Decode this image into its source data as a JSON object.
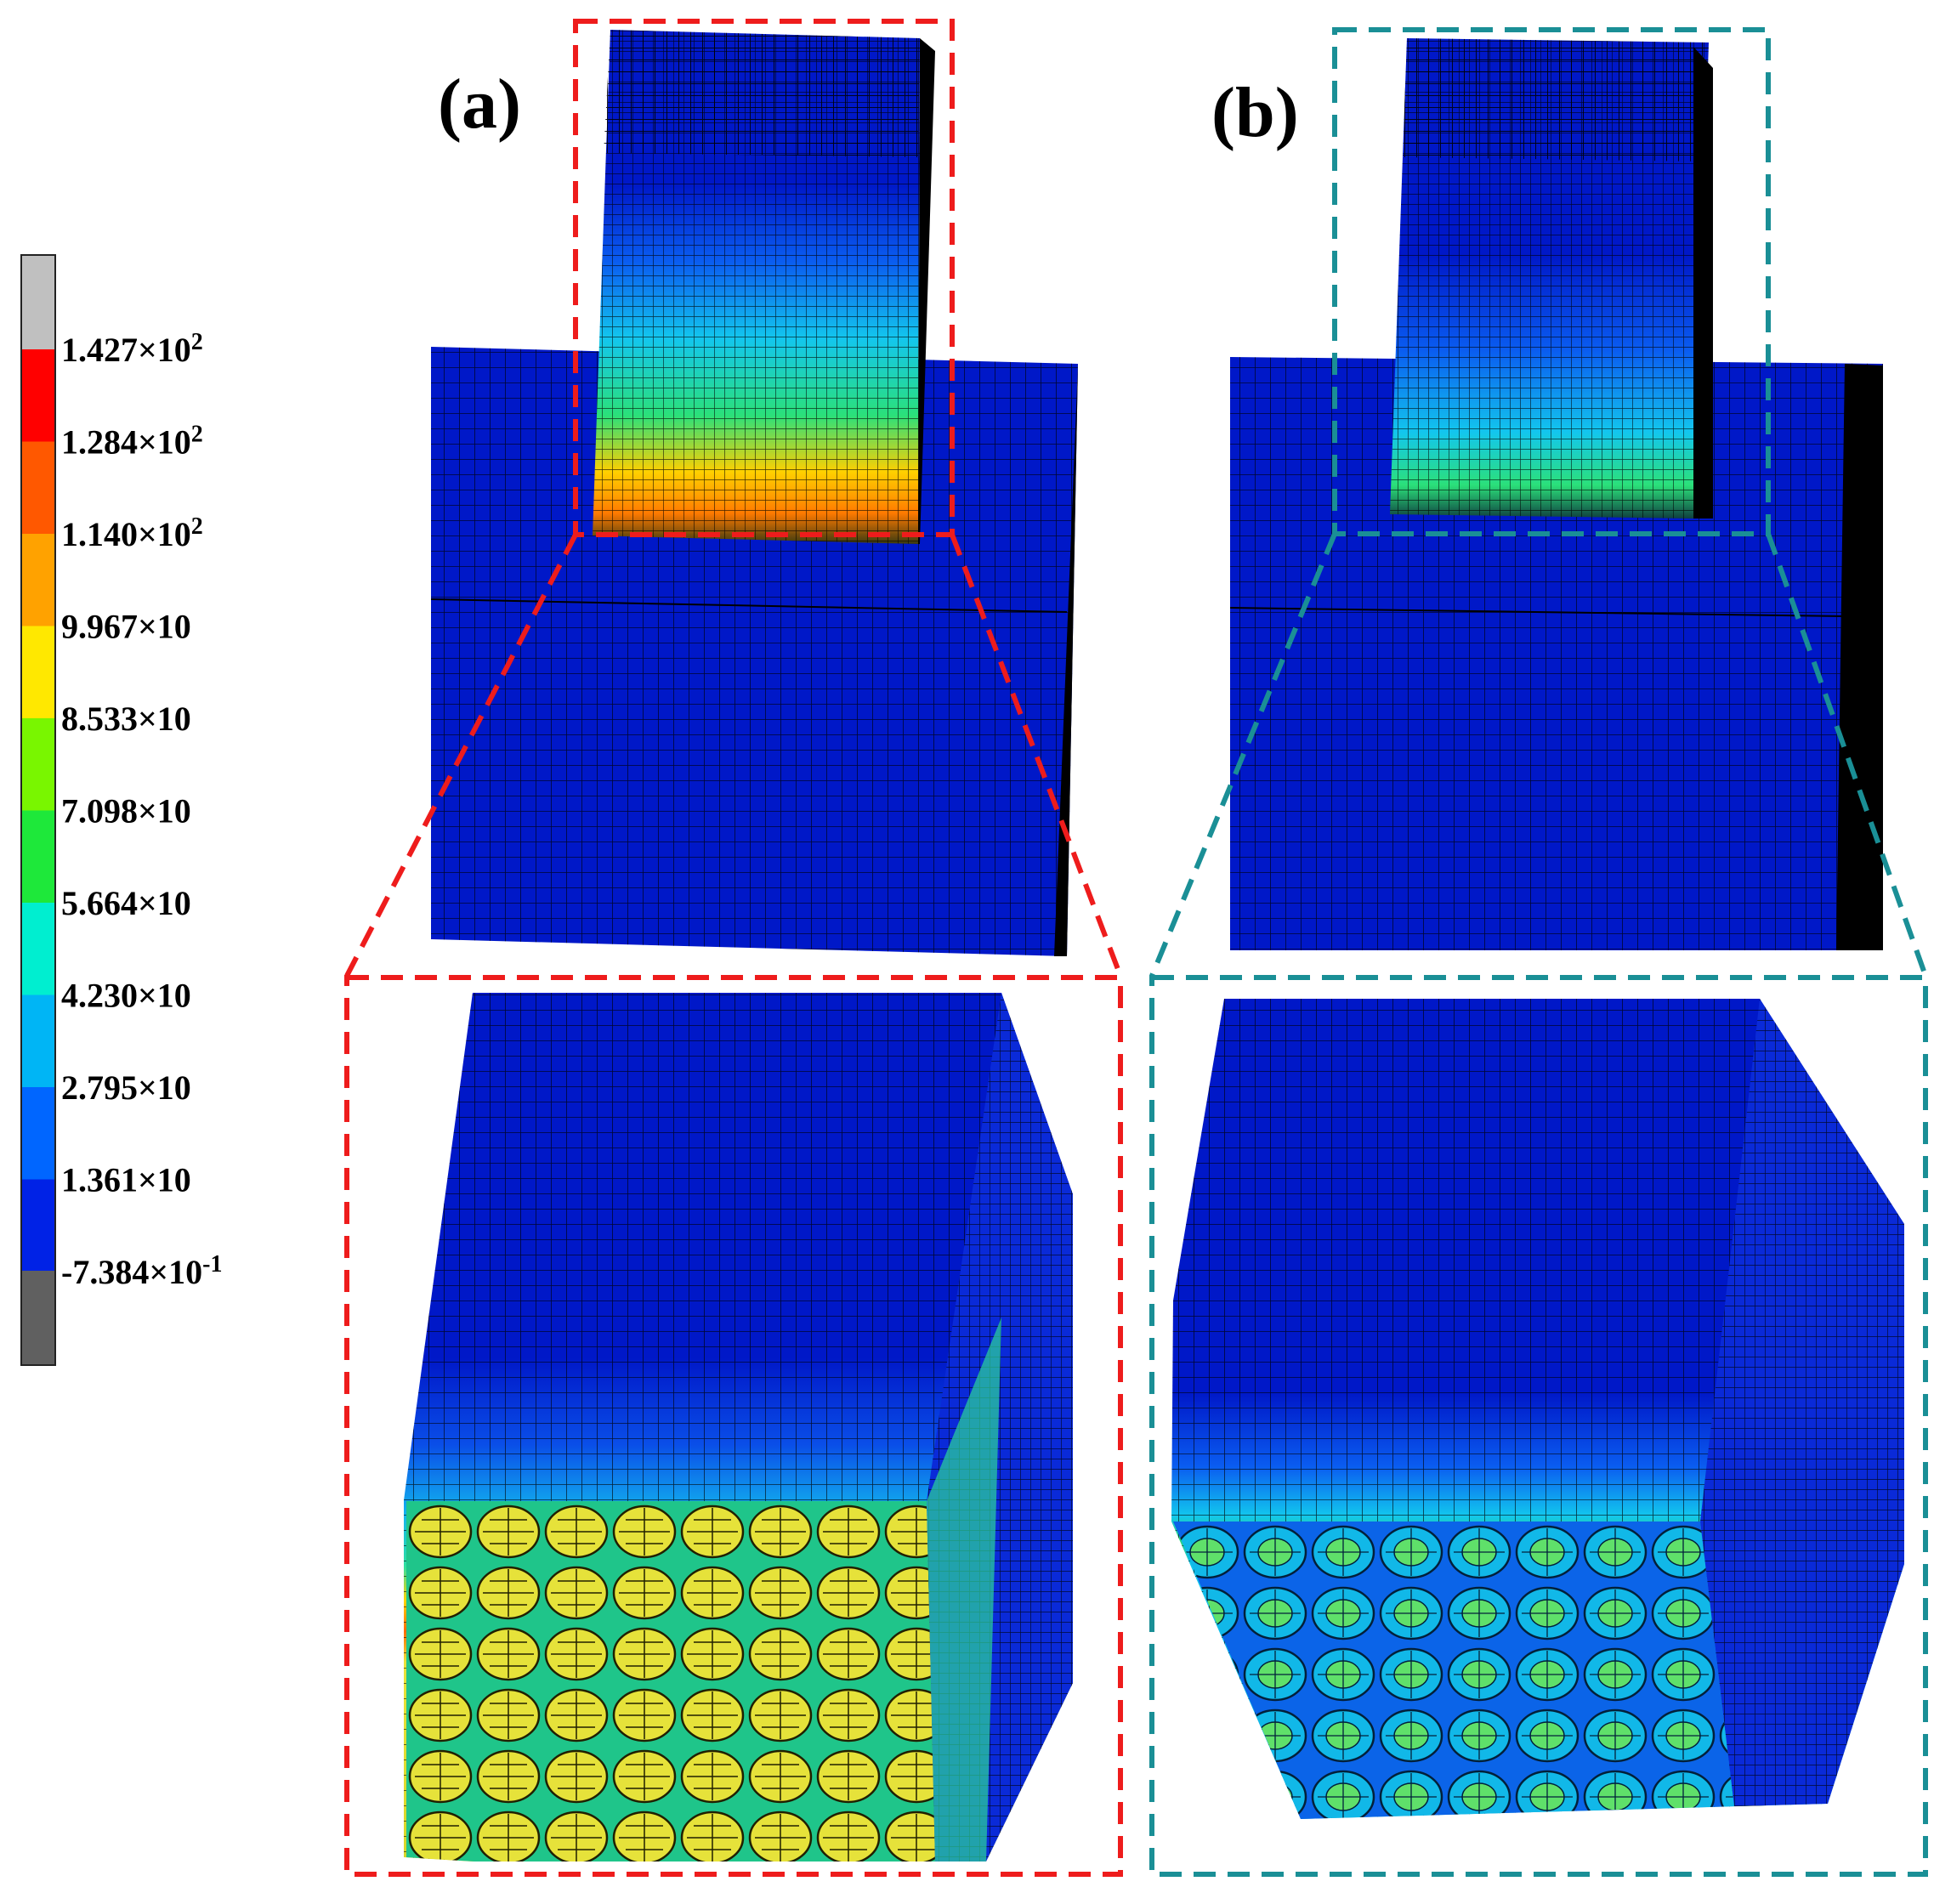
{
  "panels": [
    {
      "id": "a",
      "label": "(a)",
      "frame_color": "#ee1c1c"
    },
    {
      "id": "b",
      "label": "(b)",
      "frame_color": "#1a8f96"
    }
  ],
  "legend": {
    "above_max_color": "#c0c0c0",
    "below_min_color": "#606060",
    "bands": [
      {
        "color": "#ff0000",
        "label_base": "1.427×10",
        "label_exp": "2"
      },
      {
        "color": "#ff5800",
        "label_base": "1.284×10",
        "label_exp": "2"
      },
      {
        "color": "#ffa200",
        "label_base": "1.140×10",
        "label_exp": "2"
      },
      {
        "color": "#ffe800",
        "label_base": "9.967×10",
        "label_exp": ""
      },
      {
        "color": "#79f600",
        "label_base": "8.533×10",
        "label_exp": ""
      },
      {
        "color": "#1ee83a",
        "label_base": "7.098×10",
        "label_exp": ""
      },
      {
        "color": "#00eed0",
        "label_base": "5.664×10",
        "label_exp": ""
      },
      {
        "color": "#00b5f5",
        "label_base": "4.230×10",
        "label_exp": ""
      },
      {
        "color": "#0066ff",
        "label_base": "2.795×10",
        "label_exp": ""
      },
      {
        "color": "#0022e6",
        "label_base": "1.361×10",
        "label_exp": ""
      },
      {
        "color": "#606060",
        "label_base": "-7.384×10",
        "label_exp": "-1"
      }
    ]
  }
}
